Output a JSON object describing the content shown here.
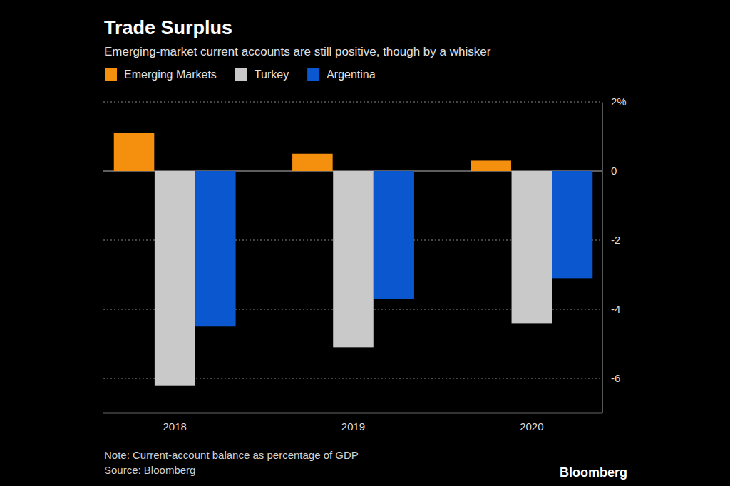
{
  "chart_data": {
    "type": "bar",
    "title": "Trade Surplus",
    "subtitle": "Emerging-market current accounts are still positive, though by a whisker",
    "categories": [
      "2018",
      "2019",
      "2020"
    ],
    "series": [
      {
        "name": "Emerging Markets",
        "color": "#f5900f",
        "values": [
          1.1,
          0.5,
          0.3
        ]
      },
      {
        "name": "Turkey",
        "color": "#c9c9c9",
        "values": [
          -6.2,
          -5.1,
          -4.4
        ]
      },
      {
        "name": "Argentina",
        "color": "#0b57d0",
        "values": [
          -4.5,
          -3.7,
          -3.1
        ]
      }
    ],
    "ylim": [
      -7,
      2
    ],
    "yticks": [
      {
        "value": 2,
        "label": "2%"
      },
      0,
      -2,
      -4,
      -6
    ],
    "grid": true,
    "legend": "top-left",
    "note": "Note: Current-account balance as percentage of GDP",
    "source": "Source: Bloomberg",
    "brand": "Bloomberg"
  }
}
